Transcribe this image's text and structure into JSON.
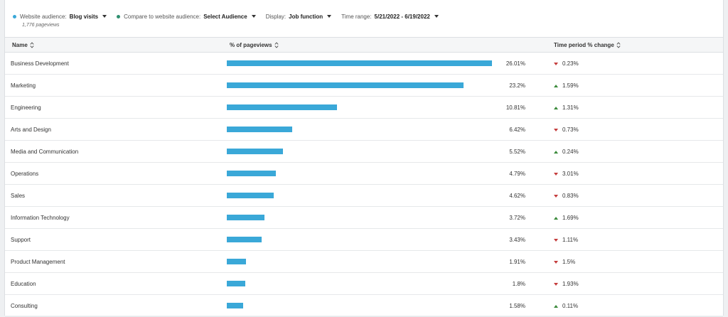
{
  "filters": {
    "website_audience": {
      "label": "Website audience:",
      "value": "Blog visits",
      "color": "#3aa8d8"
    },
    "compare_audience": {
      "label": "Compare to website audience:",
      "value": "Select Audience",
      "color": "#2f8f6f"
    },
    "display": {
      "label": "Display:",
      "value": "Job function"
    },
    "time_range": {
      "label": "Time range:",
      "value": "5/21/2022 - 6/19/2022"
    }
  },
  "pageviews_text": "1,776 pageviews",
  "table": {
    "headers": {
      "name": "Name",
      "pct": "% of pageviews",
      "change": "Time period % change"
    },
    "rows": [
      {
        "name": "Business Development",
        "pct_value": 26.01,
        "pct": "26.01%",
        "direction": "down",
        "change": "0.23%"
      },
      {
        "name": "Marketing",
        "pct_value": 23.2,
        "pct": "23.2%",
        "direction": "up",
        "change": "1.59%"
      },
      {
        "name": "Engineering",
        "pct_value": 10.81,
        "pct": "10.81%",
        "direction": "up",
        "change": "1.31%"
      },
      {
        "name": "Arts and Design",
        "pct_value": 6.42,
        "pct": "6.42%",
        "direction": "down",
        "change": "0.73%"
      },
      {
        "name": "Media and Communication",
        "pct_value": 5.52,
        "pct": "5.52%",
        "direction": "up",
        "change": "0.24%"
      },
      {
        "name": "Operations",
        "pct_value": 4.79,
        "pct": "4.79%",
        "direction": "down",
        "change": "3.01%"
      },
      {
        "name": "Sales",
        "pct_value": 4.62,
        "pct": "4.62%",
        "direction": "down",
        "change": "0.83%"
      },
      {
        "name": "Information Technology",
        "pct_value": 3.72,
        "pct": "3.72%",
        "direction": "up",
        "change": "1.69%"
      },
      {
        "name": "Support",
        "pct_value": 3.43,
        "pct": "3.43%",
        "direction": "down",
        "change": "1.11%"
      },
      {
        "name": "Product Management",
        "pct_value": 1.91,
        "pct": "1.91%",
        "direction": "down",
        "change": "1.5%"
      },
      {
        "name": "Education",
        "pct_value": 1.8,
        "pct": "1.8%",
        "direction": "down",
        "change": "1.93%"
      },
      {
        "name": "Consulting",
        "pct_value": 1.58,
        "pct": "1.58%",
        "direction": "up",
        "change": "0.11%"
      }
    ]
  },
  "colors": {
    "bar": "#3aa8d8",
    "down": "#c43b3b",
    "up": "#3a8a3a"
  }
}
